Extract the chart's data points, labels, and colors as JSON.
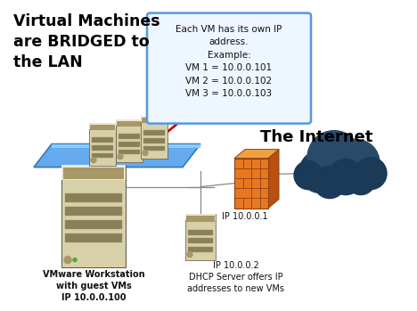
{
  "bg_color": "#ffffff",
  "top_left_text": "Virtual Machines\nare BRIDGED to\nthe LAN",
  "callout_text": "Each VM has its own IP\naddress.\nExample:\nVM 1 = 10.0.0.101\nVM 2 = 10.0.0.102\nVM 3 = 10.0.0.103",
  "callout_box_edge": "#5599dd",
  "callout_box_face": "#eef6ff",
  "internet_text": "The Internet",
  "vmware_label": "VMware Workstation\nwith guest VMs\nIP 10.0.0.100",
  "firewall_label": "IP 10.0.0.1",
  "dhcp_label": "IP 10.0.0.2\nDHCP Server offers IP\naddresses to new VMs",
  "arrow_color": "#cc0000",
  "line_color": "#888888",
  "server_body": "#d8d0a8",
  "server_dark": "#a89868",
  "server_stripe": "#888058",
  "server_light": "#ece8d0",
  "firewall_front": "#e87820",
  "firewall_top": "#f0a040",
  "firewall_side": "#b85010",
  "firewall_dark": "#904010",
  "cloud_dark": "#1a3a58",
  "cloud_mid": "#2a4a6a",
  "cloud_light": "#3a5a7a",
  "platform_face": "#66aaee",
  "platform_edge": "#3377bb",
  "platform_top": "#88ccff"
}
